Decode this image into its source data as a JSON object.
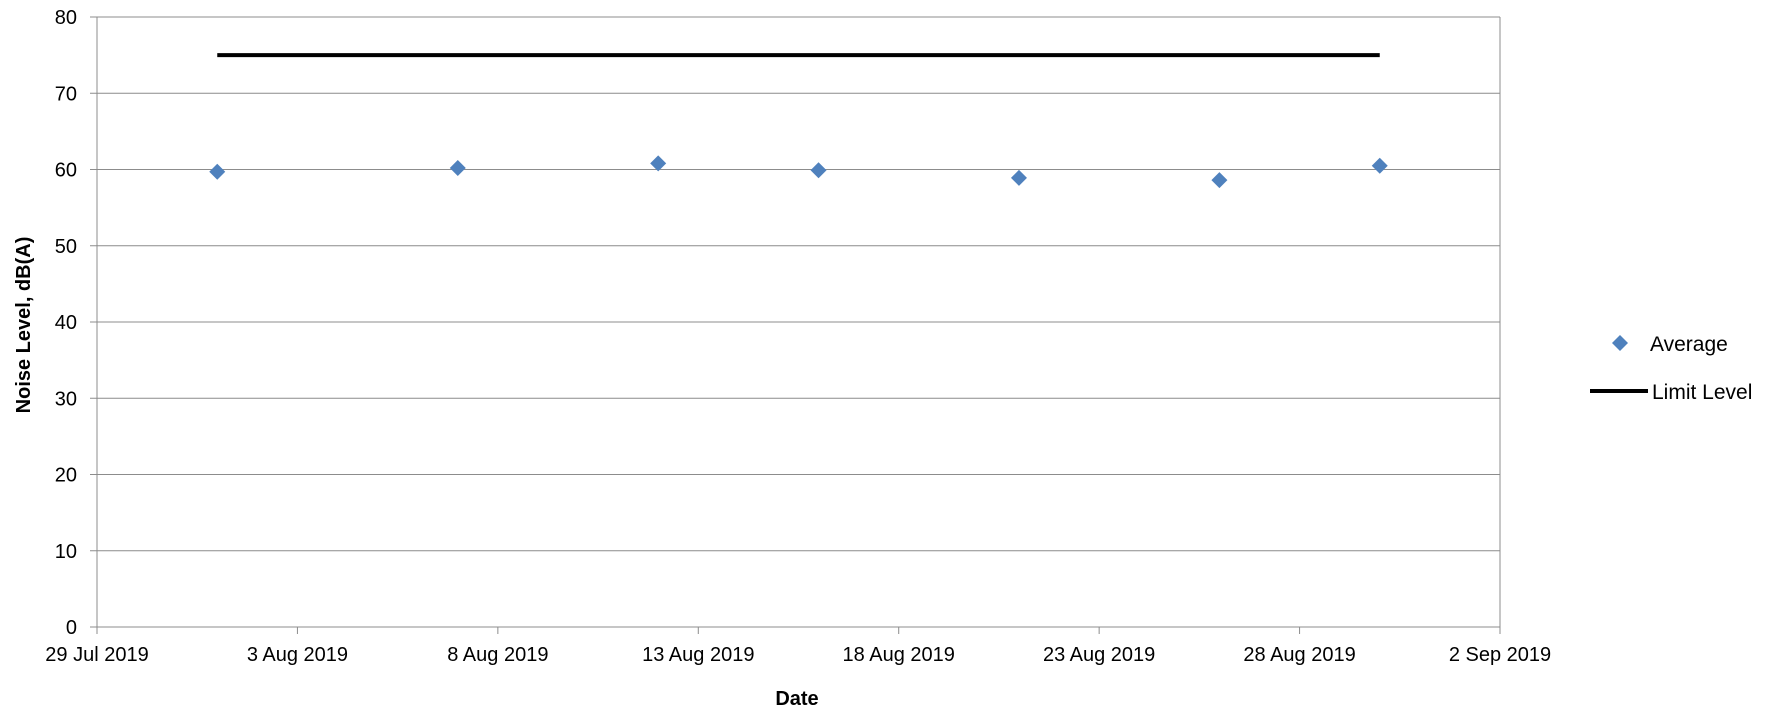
{
  "chart_data": {
    "type": "scatter",
    "xlabel": "Date",
    "ylabel": "Noise Level, dB(A)",
    "ylim": [
      0,
      80
    ],
    "yticks": [
      "0",
      "10",
      "20",
      "30",
      "40",
      "50",
      "60",
      "70",
      "80"
    ],
    "xlim": [
      "2019-07-29",
      "2019-09-02"
    ],
    "xticks": [
      {
        "date": "2019-07-29",
        "label": "29 Jul 2019"
      },
      {
        "date": "2019-08-03",
        "label": "3 Aug 2019"
      },
      {
        "date": "2019-08-08",
        "label": "8 Aug 2019"
      },
      {
        "date": "2019-08-13",
        "label": "13 Aug 2019"
      },
      {
        "date": "2019-08-18",
        "label": "18 Aug 2019"
      },
      {
        "date": "2019-08-23",
        "label": "23 Aug 2019"
      },
      {
        "date": "2019-08-28",
        "label": "28 Aug 2019"
      },
      {
        "date": "2019-09-02",
        "label": "2 Sep 2019"
      }
    ],
    "grid": true,
    "legend_position": "right",
    "series": [
      {
        "name": "Average",
        "type": "scatter",
        "marker": "diamond",
        "color": "#4F81BD",
        "points": [
          {
            "x": "2019-08-01",
            "y": 59.7
          },
          {
            "x": "2019-08-07",
            "y": 60.2
          },
          {
            "x": "2019-08-12",
            "y": 60.8
          },
          {
            "x": "2019-08-16",
            "y": 59.9
          },
          {
            "x": "2019-08-21",
            "y": 58.9
          },
          {
            "x": "2019-08-26",
            "y": 58.6
          },
          {
            "x": "2019-08-30",
            "y": 60.5
          }
        ]
      },
      {
        "name": "Limit Level",
        "type": "line",
        "color": "#000000",
        "points": [
          {
            "x": "2019-08-01",
            "y": 75
          },
          {
            "x": "2019-08-30",
            "y": 75
          }
        ]
      }
    ]
  }
}
